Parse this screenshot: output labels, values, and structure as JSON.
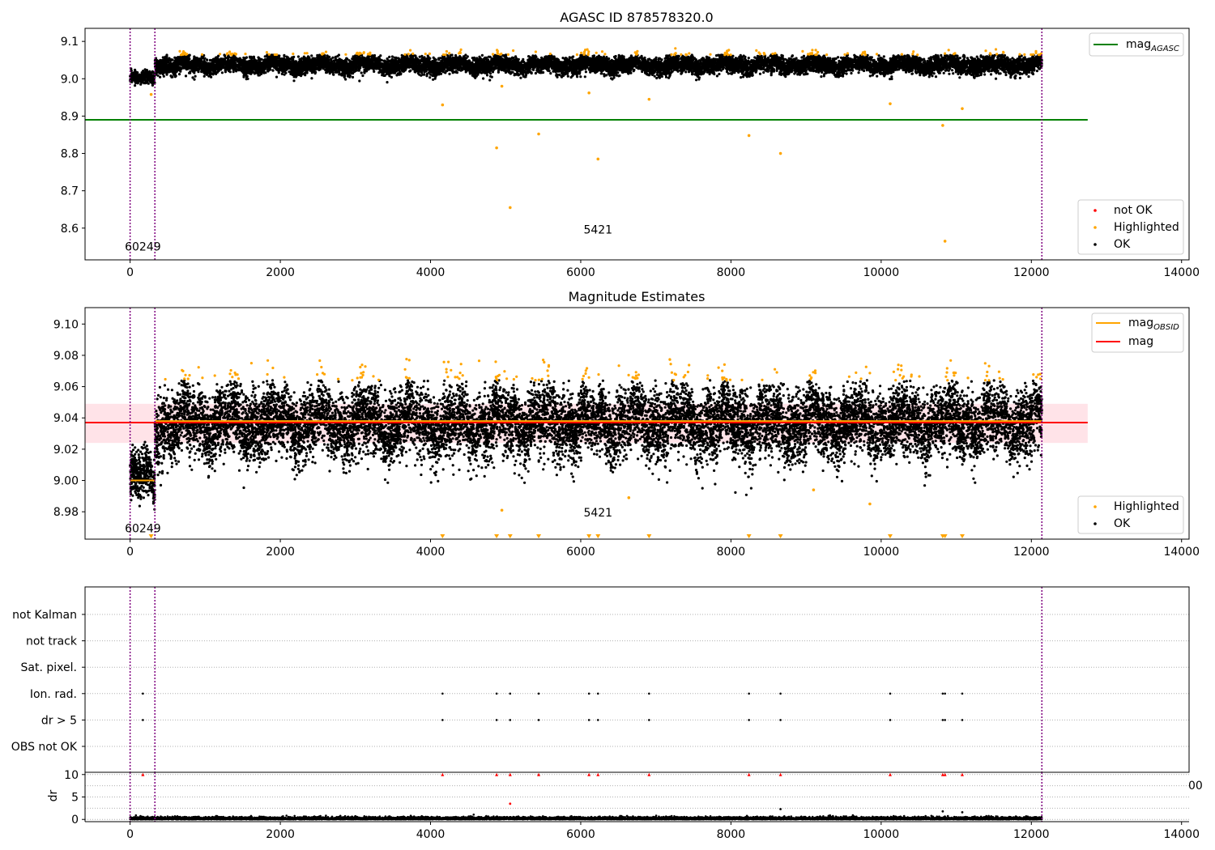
{
  "chart_data": [
    {
      "type": "scatter",
      "title": "AGASC ID 878578320.0",
      "xlim": [
        -600,
        14100
      ],
      "ylim": [
        8.515,
        9.135
      ],
      "xticks": [
        0,
        2000,
        4000,
        6000,
        8000,
        10000,
        12000,
        14000
      ],
      "xtick_labels": [
        "0",
        "2000",
        "4000",
        "6000",
        "8000",
        "10000",
        "12000",
        "14000"
      ],
      "yticks": [
        8.6,
        8.7,
        8.8,
        8.9,
        9.0,
        9.1
      ],
      "ytick_labels": [
        "8.6",
        "8.7",
        "8.8",
        "8.9",
        "9.0",
        "9.1"
      ],
      "hlines": [
        {
          "name": "mag_AGASC",
          "y": 8.89,
          "x_range": [
            -600,
            12750
          ],
          "color": "#008000"
        }
      ],
      "vlines": [
        0,
        330,
        12140
      ],
      "obsid_labels": [
        {
          "text": "60249",
          "x": 170,
          "y": 8.54
        },
        {
          "text": "5421",
          "x": 6230,
          "y": 8.585
        }
      ],
      "legend_lines": [
        {
          "label": "mag",
          "sub": "AGASC",
          "color": "#008000"
        }
      ],
      "legend_points": [
        {
          "label": "not OK",
          "color": "#ff0000"
        },
        {
          "label": "Highlighted",
          "color": "#ffa500"
        },
        {
          "label": "OK",
          "color": "#000000"
        }
      ],
      "segments": [
        {
          "x0": 0,
          "x1": 330,
          "mean": 9.0,
          "sd": 0.008
        },
        {
          "x0": 330,
          "x1": 12140,
          "mean": 9.037,
          "sd": 0.011
        }
      ],
      "highlight_outliers": [
        {
          "x": 4160,
          "y": 8.93
        },
        {
          "x": 4880,
          "y": 8.815
        },
        {
          "x": 4950,
          "y": 8.98
        },
        {
          "x": 5060,
          "y": 8.655
        },
        {
          "x": 5440,
          "y": 8.852
        },
        {
          "x": 6110,
          "y": 8.962
        },
        {
          "x": 6230,
          "y": 8.785
        },
        {
          "x": 6910,
          "y": 8.945
        },
        {
          "x": 8240,
          "y": 8.848
        },
        {
          "x": 8660,
          "y": 8.8
        },
        {
          "x": 10120,
          "y": 8.933
        },
        {
          "x": 10820,
          "y": 8.875
        },
        {
          "x": 10850,
          "y": 8.565
        },
        {
          "x": 11080,
          "y": 8.92
        },
        {
          "x": 280,
          "y": 8.958
        }
      ]
    },
    {
      "type": "scatter",
      "title": "Magnitude Estimates",
      "xlim": [
        -600,
        14100
      ],
      "ylim": [
        8.9625,
        9.1105
      ],
      "xticks": [
        0,
        2000,
        4000,
        6000,
        8000,
        10000,
        12000,
        14000
      ],
      "xtick_labels": [
        "0",
        "2000",
        "4000",
        "6000",
        "8000",
        "10000",
        "12000",
        "14000"
      ],
      "yticks": [
        8.98,
        9.0,
        9.02,
        9.04,
        9.06,
        9.08,
        9.1
      ],
      "ytick_labels": [
        "8.98",
        "9.00",
        "9.02",
        "9.04",
        "9.06",
        "9.08",
        "9.10"
      ],
      "band": {
        "y0": 9.024,
        "y1": 9.049,
        "x_range": [
          -600,
          12750
        ]
      },
      "hlines": [
        {
          "name": "mag",
          "y": 9.037,
          "x_range": [
            -600,
            12750
          ],
          "color": "#ff0000"
        }
      ],
      "obsid_lines": [
        {
          "x0": 0,
          "x1": 330,
          "y": 9.0
        },
        {
          "x0": 330,
          "x1": 12140,
          "y": 9.038
        }
      ],
      "vlines": [
        0,
        330,
        12140
      ],
      "obsid_labels": [
        {
          "text": "60249",
          "x": 170,
          "y": 8.967
        },
        {
          "text": "5421",
          "x": 6230,
          "y": 8.977
        }
      ],
      "legend_lines": [
        {
          "label": "mag",
          "sub": "OBSID",
          "color": "#ffa500"
        },
        {
          "label": "mag",
          "sub": "",
          "color": "#ff0000"
        }
      ],
      "legend_points": [
        {
          "label": "Highlighted",
          "color": "#ffa500"
        },
        {
          "label": "OK",
          "color": "#000000"
        }
      ],
      "segments": [
        {
          "x0": 0,
          "x1": 330,
          "mean": 9.0,
          "sd": 0.008
        },
        {
          "x0": 330,
          "x1": 12140,
          "mean": 9.037,
          "sd": 0.011
        }
      ],
      "lower_markers": [
        280,
        4160,
        4880,
        5060,
        5440,
        6110,
        6230,
        6910,
        8240,
        8660,
        10120,
        10820,
        10850,
        11080
      ],
      "highlight_outliers": [
        {
          "x": 4950,
          "y": 8.981
        },
        {
          "x": 6640,
          "y": 8.989
        },
        {
          "x": 9100,
          "y": 8.994
        },
        {
          "x": 9850,
          "y": 8.985
        }
      ]
    },
    {
      "type": "scatter",
      "title": "",
      "categories": [
        "not Kalman",
        "not track",
        "Sat. pixel.",
        "Ion. rad.",
        "dr > 5",
        "OBS not OK"
      ],
      "xlim": [
        -600,
        14100
      ],
      "vlines": [
        0,
        330,
        12140
      ],
      "flag_x": [
        170,
        4160,
        4880,
        5060,
        5440,
        6110,
        6230,
        6910,
        8240,
        8660,
        10120,
        10820,
        10850,
        11080
      ],
      "flag_rows": [
        "Ion. rad.",
        "dr > 5"
      ]
    },
    {
      "type": "scatter",
      "title": "",
      "ylabel": "dr",
      "xlim": [
        -600,
        14100
      ],
      "ylim": [
        -0.5,
        10.5
      ],
      "yticks": [
        0,
        5,
        10
      ],
      "ytick_labels": [
        "0",
        "5",
        "10"
      ],
      "xticks": [
        0,
        2000,
        4000,
        6000,
        8000,
        10000,
        12000,
        14000
      ],
      "xtick_labels": [
        "0",
        "2000",
        "4000",
        "6000",
        "8000",
        "10000",
        "12000",
        "14000"
      ],
      "clipped_right_label": "00",
      "vlines": [
        0,
        330,
        12140
      ],
      "red_x": [
        170,
        4160,
        4880,
        5060,
        5440,
        6110,
        6230,
        6910,
        8240,
        8660,
        10120,
        10820,
        10850,
        11080
      ],
      "red_y": 10,
      "extra_points": [
        {
          "x": 5060,
          "y": 3.5,
          "color": "#ff0000"
        },
        {
          "x": 8660,
          "y": 2.3,
          "color": "#000000"
        },
        {
          "x": 10820,
          "y": 1.8,
          "color": "#000000"
        },
        {
          "x": 11080,
          "y": 1.6,
          "color": "#000000"
        }
      ]
    }
  ]
}
